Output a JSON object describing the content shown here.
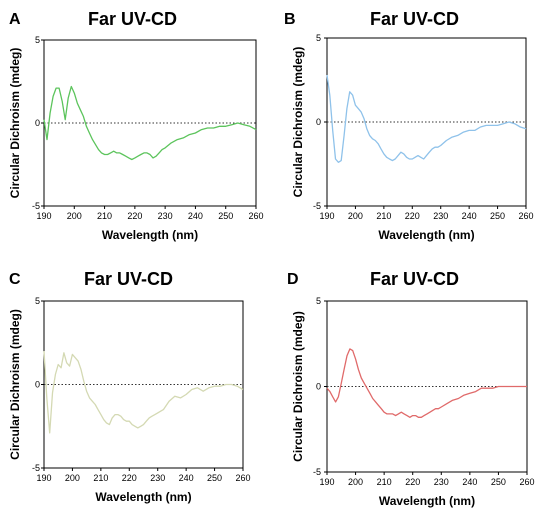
{
  "panels": [
    {
      "letter": "A",
      "title": "Far UV-CD"
    },
    {
      "letter": "B",
      "title": "Far UV-CD"
    },
    {
      "letter": "C",
      "title": "Far UV-CD"
    },
    {
      "letter": "D",
      "title": "Far UV-CD"
    }
  ],
  "chart_data": [
    {
      "type": "line",
      "title": "Far UV-CD",
      "xlabel": "Wavelength (nm)",
      "ylabel": "Circular Dichroism (mdeg)",
      "xlim": [
        190,
        260
      ],
      "ylim": [
        -5,
        5
      ],
      "xticks": [
        190,
        200,
        210,
        220,
        230,
        240,
        250,
        260
      ],
      "yticks": [
        5,
        0,
        -5
      ],
      "zero_line": "dotted",
      "color": "#5cc45c",
      "series": [
        {
          "x": [
            190,
            191,
            192,
            193,
            194,
            195,
            196,
            197,
            198,
            199,
            200,
            201,
            202,
            203,
            204,
            205,
            206,
            207,
            208,
            209,
            210,
            211,
            212,
            213,
            214,
            215,
            216,
            217,
            218,
            219,
            220,
            221,
            222,
            223,
            224,
            225,
            226,
            227,
            228,
            229,
            230,
            232,
            234,
            236,
            238,
            240,
            242,
            244,
            246,
            248,
            250,
            252,
            254,
            256,
            258,
            260
          ],
          "y": [
            0.2,
            -1.0,
            0.6,
            1.6,
            2.1,
            2.1,
            1.3,
            0.2,
            1.5,
            2.2,
            1.8,
            1.2,
            0.8,
            0.4,
            -0.2,
            -0.6,
            -1.0,
            -1.3,
            -1.6,
            -1.8,
            -1.9,
            -1.9,
            -1.8,
            -1.7,
            -1.8,
            -1.8,
            -1.9,
            -2.0,
            -2.1,
            -2.2,
            -2.1,
            -2.0,
            -1.9,
            -1.8,
            -1.8,
            -1.9,
            -2.1,
            -2.0,
            -1.8,
            -1.6,
            -1.5,
            -1.2,
            -1.0,
            -0.9,
            -0.7,
            -0.6,
            -0.4,
            -0.3,
            -0.3,
            -0.2,
            -0.2,
            -0.1,
            0.0,
            -0.1,
            -0.2,
            -0.4
          ]
        }
      ]
    },
    {
      "type": "line",
      "title": "Far UV-CD",
      "xlabel": "Wavelength (nm)",
      "ylabel": "Circular Dichroism (mdeg)",
      "xlim": [
        190,
        260
      ],
      "ylim": [
        -5,
        5
      ],
      "xticks": [
        190,
        200,
        210,
        220,
        230,
        240,
        250,
        260
      ],
      "yticks": [
        5,
        0,
        -5
      ],
      "zero_line": "dotted",
      "color": "#8fc2ea",
      "series": [
        {
          "x": [
            190,
            191,
            192,
            193,
            194,
            195,
            196,
            197,
            198,
            199,
            200,
            201,
            202,
            203,
            204,
            205,
            206,
            207,
            208,
            209,
            210,
            211,
            212,
            213,
            214,
            215,
            216,
            217,
            218,
            219,
            220,
            221,
            222,
            223,
            224,
            225,
            226,
            227,
            228,
            229,
            230,
            232,
            234,
            236,
            238,
            240,
            242,
            244,
            246,
            248,
            250,
            252,
            254,
            256,
            258,
            260
          ],
          "y": [
            2.8,
            1.6,
            -0.5,
            -2.2,
            -2.4,
            -2.3,
            -0.8,
            0.8,
            1.8,
            1.6,
            1.0,
            0.8,
            0.6,
            0.2,
            -0.4,
            -0.8,
            -1.0,
            -1.1,
            -1.3,
            -1.6,
            -1.9,
            -2.1,
            -2.2,
            -2.3,
            -2.2,
            -2.0,
            -1.8,
            -1.9,
            -2.1,
            -2.2,
            -2.2,
            -2.1,
            -2.0,
            -2.1,
            -2.2,
            -2.0,
            -1.8,
            -1.6,
            -1.5,
            -1.5,
            -1.4,
            -1.1,
            -0.9,
            -0.8,
            -0.6,
            -0.5,
            -0.5,
            -0.3,
            -0.2,
            -0.2,
            -0.2,
            -0.1,
            0.0,
            -0.1,
            -0.3,
            -0.4
          ]
        }
      ]
    },
    {
      "type": "line",
      "title": "Far UV-CD",
      "xlabel": "Wavelength (nm)",
      "ylabel": "Circular Dichroism (mdeg)",
      "xlim": [
        190,
        260
      ],
      "ylim": [
        -5,
        5
      ],
      "xticks": [
        190,
        200,
        210,
        220,
        230,
        240,
        250,
        260
      ],
      "yticks": [
        5,
        0,
        -5
      ],
      "zero_line": "dotted",
      "color": "#d4d9b3",
      "series": [
        {
          "x": [
            190,
            191,
            192,
            193,
            194,
            195,
            196,
            197,
            198,
            199,
            200,
            201,
            202,
            203,
            204,
            205,
            206,
            207,
            208,
            209,
            210,
            211,
            212,
            213,
            214,
            215,
            216,
            217,
            218,
            219,
            220,
            221,
            222,
            223,
            224,
            225,
            226,
            227,
            228,
            229,
            230,
            232,
            234,
            236,
            238,
            240,
            242,
            244,
            246,
            248,
            250,
            252,
            254,
            256,
            258,
            260
          ],
          "y": [
            2.0,
            -0.8,
            -2.9,
            -0.5,
            0.6,
            1.2,
            1.0,
            1.9,
            1.3,
            1.1,
            1.8,
            1.6,
            1.4,
            0.9,
            0.2,
            -0.4,
            -0.8,
            -1.0,
            -1.2,
            -1.5,
            -1.8,
            -2.1,
            -2.3,
            -2.4,
            -2.0,
            -1.8,
            -1.8,
            -1.9,
            -2.1,
            -2.2,
            -2.2,
            -2.4,
            -2.5,
            -2.6,
            -2.5,
            -2.4,
            -2.2,
            -2.0,
            -1.9,
            -1.8,
            -1.7,
            -1.5,
            -1.0,
            -0.7,
            -0.8,
            -0.6,
            -0.3,
            -0.2,
            -0.4,
            -0.2,
            -0.1,
            -0.1,
            0.0,
            0.0,
            -0.1,
            -0.3
          ]
        }
      ]
    },
    {
      "type": "line",
      "title": "Far UV-CD",
      "xlabel": "Wavelength (nm)",
      "ylabel": "Circular Dichroism (mdeg)",
      "xlim": [
        190,
        260
      ],
      "ylim": [
        -5,
        5
      ],
      "xticks": [
        190,
        200,
        210,
        220,
        230,
        240,
        250,
        260
      ],
      "yticks": [
        5,
        0,
        -5
      ],
      "zero_line": "dotted",
      "color": "#e06a6a",
      "series": [
        {
          "x": [
            190,
            191,
            192,
            193,
            194,
            195,
            196,
            197,
            198,
            199,
            200,
            201,
            202,
            203,
            204,
            205,
            206,
            207,
            208,
            209,
            210,
            211,
            212,
            213,
            214,
            215,
            216,
            217,
            218,
            219,
            220,
            221,
            222,
            223,
            224,
            225,
            226,
            227,
            228,
            229,
            230,
            232,
            234,
            236,
            238,
            240,
            242,
            244,
            246,
            248,
            250,
            252,
            254,
            256,
            258,
            260
          ],
          "y": [
            -0.1,
            -0.3,
            -0.6,
            -0.9,
            -0.6,
            0.2,
            1.0,
            1.8,
            2.2,
            2.1,
            1.6,
            1.0,
            0.5,
            0.2,
            -0.1,
            -0.4,
            -0.7,
            -0.9,
            -1.1,
            -1.3,
            -1.5,
            -1.6,
            -1.6,
            -1.6,
            -1.7,
            -1.6,
            -1.5,
            -1.6,
            -1.7,
            -1.8,
            -1.7,
            -1.7,
            -1.8,
            -1.8,
            -1.7,
            -1.6,
            -1.5,
            -1.4,
            -1.3,
            -1.3,
            -1.2,
            -1.0,
            -0.8,
            -0.7,
            -0.5,
            -0.4,
            -0.3,
            -0.1,
            -0.1,
            -0.1,
            0.0,
            0.0,
            0.0,
            0.0,
            0.0,
            0.0
          ]
        }
      ]
    }
  ]
}
